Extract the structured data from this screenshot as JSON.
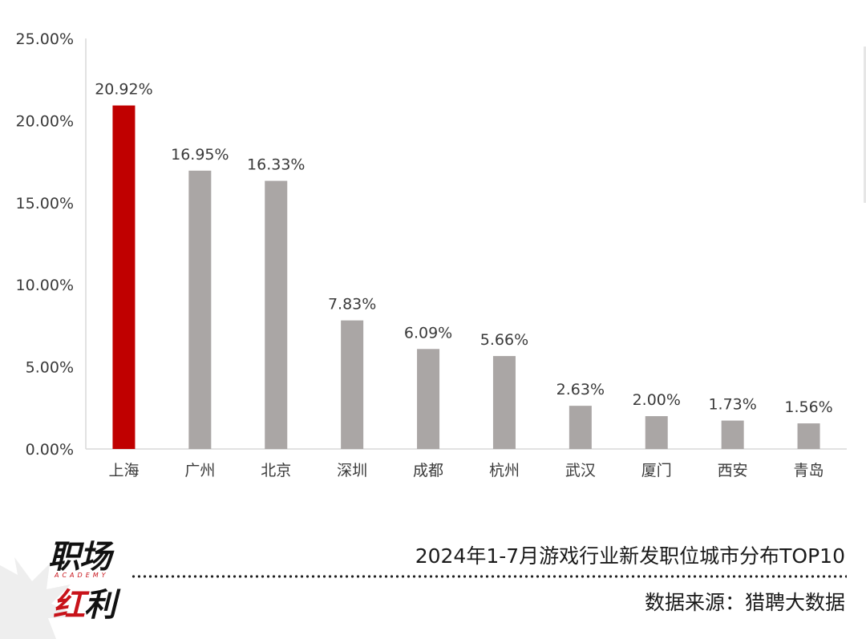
{
  "chart_data": {
    "type": "bar",
    "categories": [
      "上海",
      "广州",
      "北京",
      "深圳",
      "成都",
      "杭州",
      "武汉",
      "厦门",
      "西安",
      "青岛"
    ],
    "values": [
      20.92,
      16.95,
      16.33,
      7.83,
      6.09,
      5.66,
      2.63,
      2.0,
      1.73,
      1.56
    ],
    "data_labels": [
      "20.92%",
      "16.95%",
      "16.33%",
      "7.83%",
      "6.09%",
      "5.66%",
      "2.63%",
      "2.00%",
      "1.73%",
      "1.56%"
    ],
    "highlight_index": 0,
    "colors": {
      "highlight": "#c00000",
      "default": "#aaa6a5",
      "axis": "#d9d9d9"
    },
    "ylim": [
      0,
      25
    ],
    "yticks": [
      0,
      5,
      10,
      15,
      20,
      25
    ],
    "ytick_labels": [
      "0.00%",
      "5.00%",
      "10.00%",
      "15.00%",
      "20.00%",
      "25.00%"
    ],
    "grid": false
  },
  "footer": {
    "title": "2024年1-7月游戏行业新发职位城市分布TOP10",
    "source": "数据来源：猎聘大数据"
  },
  "logo": {
    "line1": "职场",
    "academy": "ACADEMY",
    "line2_accent": "红",
    "line2_rest": "利"
  }
}
